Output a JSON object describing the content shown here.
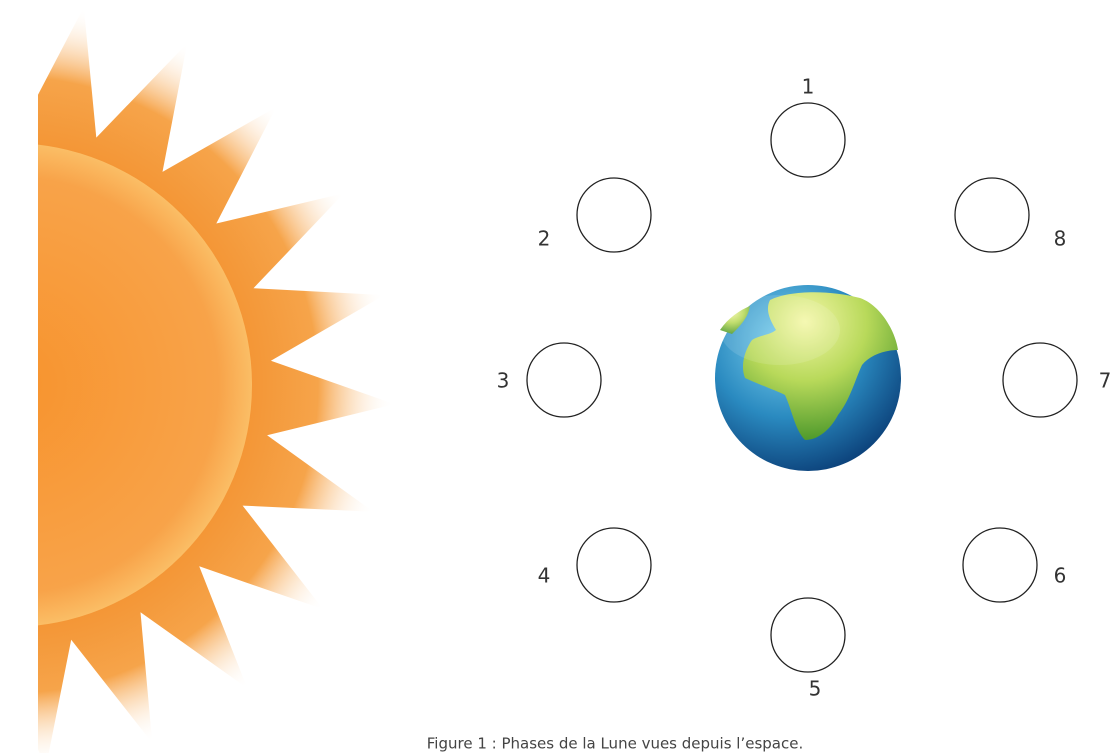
{
  "moons": [
    {
      "label": "1"
    },
    {
      "label": "2"
    },
    {
      "label": "3"
    },
    {
      "label": "4"
    },
    {
      "label": "5"
    },
    {
      "label": "6"
    },
    {
      "label": "7"
    },
    {
      "label": "8"
    }
  ],
  "caption": "Figure 1 : Phases de la Lune vues depuis l’espace."
}
